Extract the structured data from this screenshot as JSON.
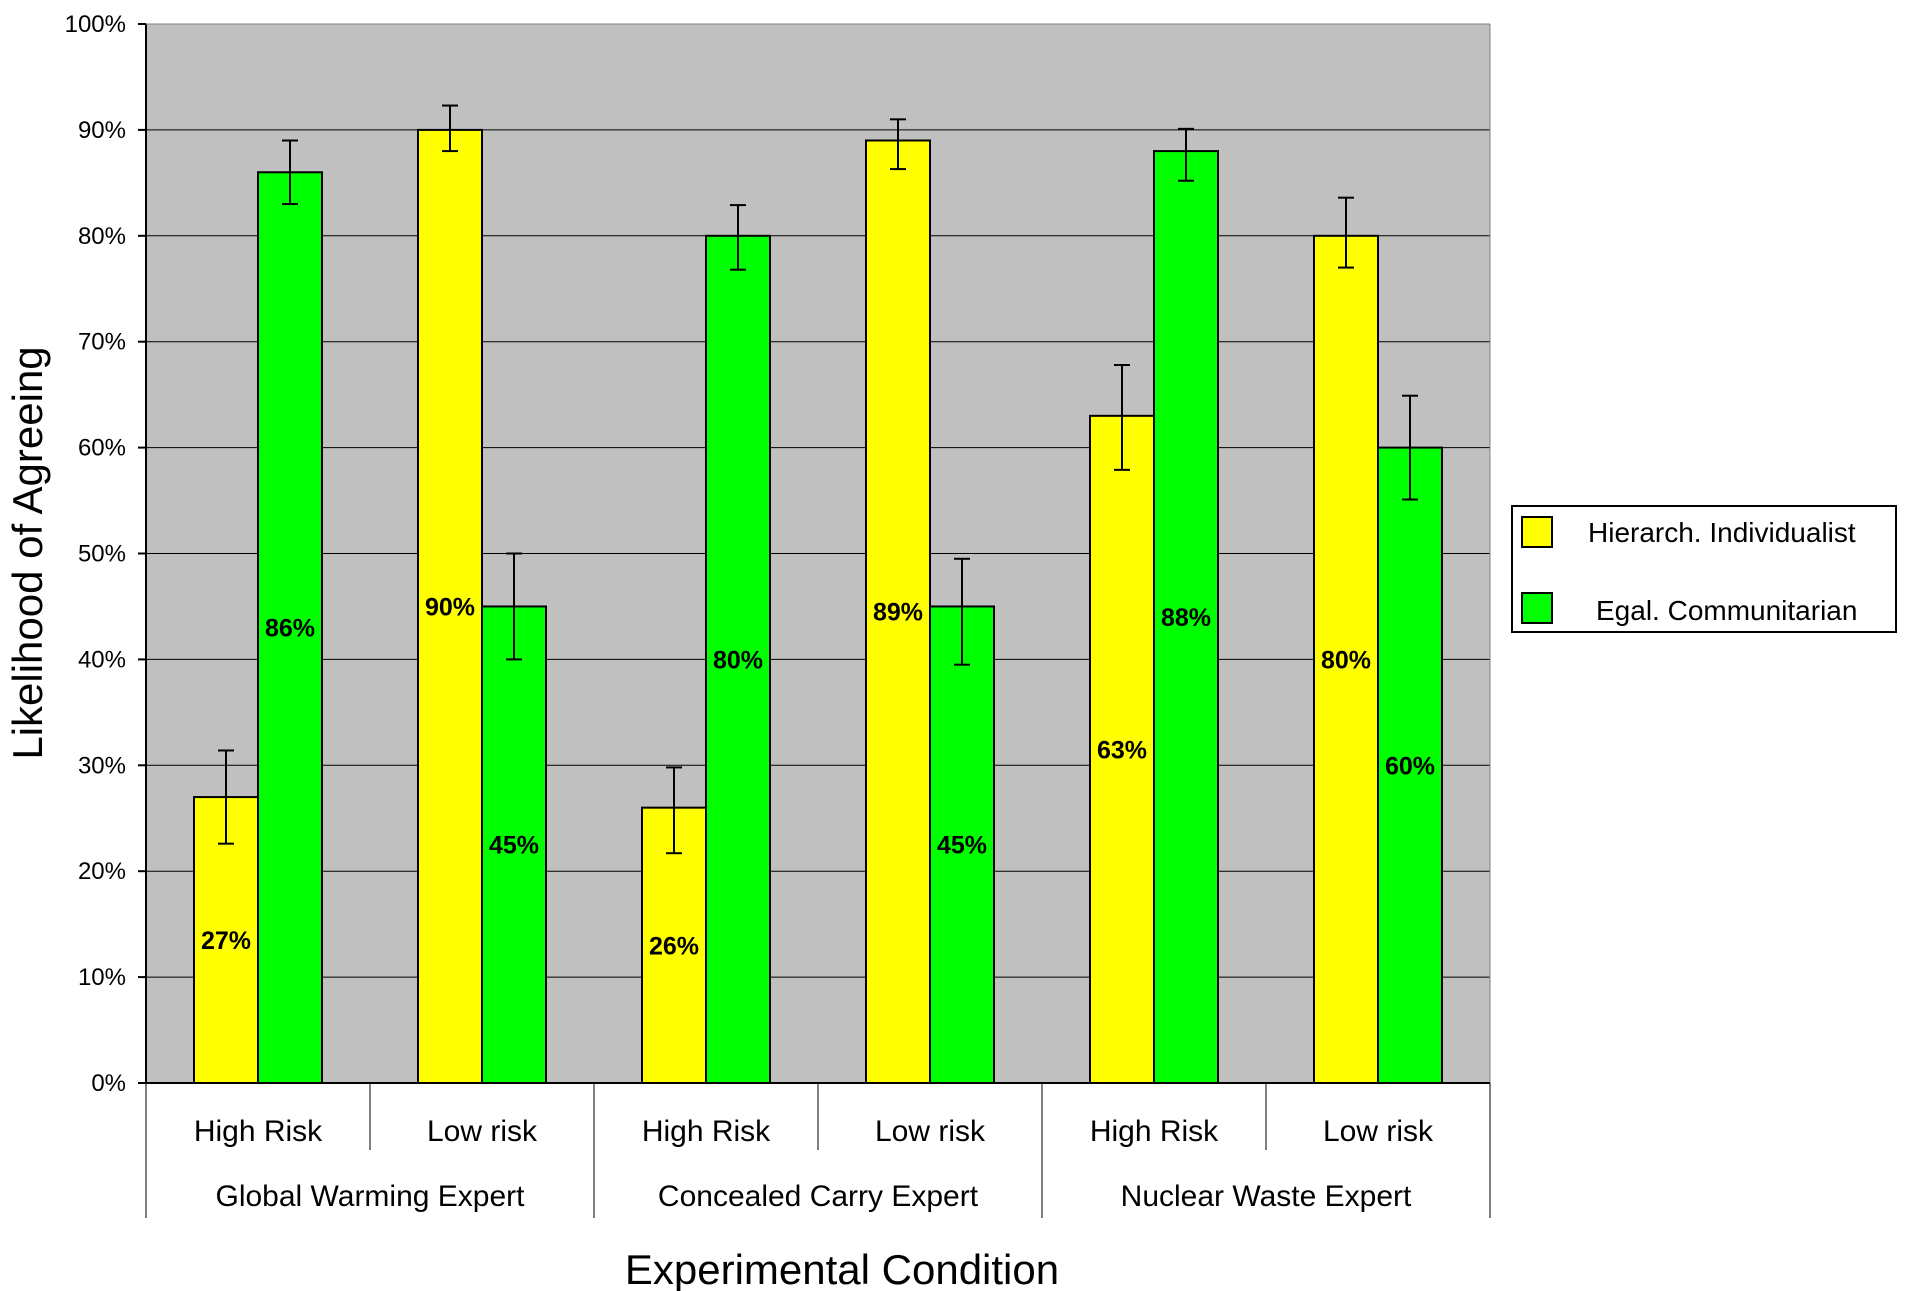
{
  "chart_data": {
    "type": "bar",
    "categories": [
      "High Risk",
      "Low risk",
      "High Risk",
      "Low risk",
      "High Risk",
      "Low risk"
    ],
    "groups": [
      "Global Warming Expert",
      "Concealed Carry Expert",
      "Nuclear Waste Expert"
    ],
    "group_spans": [
      2,
      2,
      2
    ],
    "series": [
      {
        "name": "Hierarch. Individualist",
        "color": "#ffff00",
        "values": [
          27,
          90,
          26,
          89,
          63,
          80
        ],
        "labels": [
          "27%",
          "90%",
          "26%",
          "89%",
          "63%",
          "80%"
        ],
        "error_low": [
          22.6,
          88.0,
          21.7,
          86.3,
          57.9,
          77.0
        ],
        "error_high": [
          31.4,
          92.3,
          29.8,
          91.0,
          67.8,
          83.6
        ]
      },
      {
        "name": "Egal. Communitarian",
        "color": "#00ff00",
        "values": [
          86,
          45,
          80,
          45,
          88,
          60
        ],
        "labels": [
          "86%",
          "45%",
          "80%",
          "45%",
          "88%",
          "60%"
        ],
        "error_low": [
          83.0,
          40.0,
          76.8,
          39.5,
          85.2,
          55.1
        ],
        "error_high": [
          89.0,
          50.0,
          82.9,
          49.5,
          90.1,
          64.9
        ]
      }
    ],
    "ylim": [
      0,
      100
    ],
    "yticks": [
      "0%",
      "10%",
      "20%",
      "30%",
      "40%",
      "50%",
      "60%",
      "70%",
      "80%",
      "90%",
      "100%"
    ],
    "xlabel": "Experimental Condition",
    "ylabel": "Likelihood of Agreeing",
    "plot_background": "#c0c0c0",
    "grid": true,
    "error_bars": true,
    "legend_position": "right"
  }
}
